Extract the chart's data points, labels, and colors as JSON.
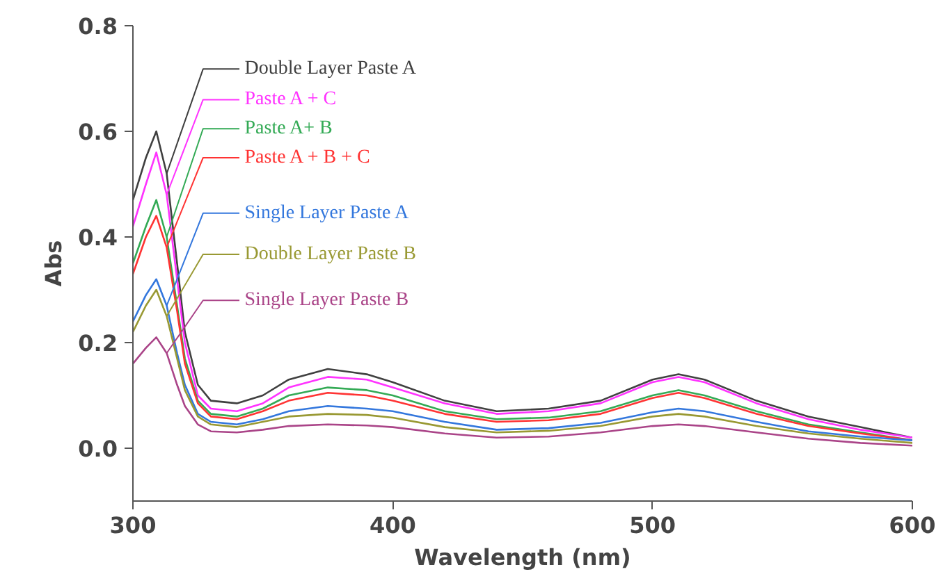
{
  "chart_data": {
    "type": "line",
    "xlabel": "Wavelength (nm)",
    "ylabel": "Abs",
    "x": [
      300,
      305,
      309,
      313,
      317,
      320,
      325,
      330,
      340,
      350,
      360,
      375,
      390,
      400,
      420,
      440,
      460,
      480,
      500,
      510,
      520,
      540,
      560,
      580,
      600
    ],
    "series": [
      {
        "name": "Double Layer Paste A",
        "color": "#404040",
        "values": [
          0.47,
          0.55,
          0.6,
          0.52,
          0.35,
          0.22,
          0.12,
          0.09,
          0.085,
          0.1,
          0.13,
          0.15,
          0.14,
          0.125,
          0.09,
          0.07,
          0.075,
          0.09,
          0.13,
          0.14,
          0.13,
          0.09,
          0.06,
          0.04,
          0.02
        ]
      },
      {
        "name": "Paste A + C",
        "color": "#ff33ff",
        "values": [
          0.42,
          0.5,
          0.56,
          0.48,
          0.32,
          0.2,
          0.1,
          0.075,
          0.07,
          0.085,
          0.115,
          0.135,
          0.13,
          0.115,
          0.085,
          0.065,
          0.07,
          0.085,
          0.125,
          0.135,
          0.125,
          0.085,
          0.055,
          0.035,
          0.02
        ]
      },
      {
        "name": "Paste A+ B",
        "color": "#33aa55",
        "values": [
          0.35,
          0.42,
          0.47,
          0.4,
          0.27,
          0.17,
          0.09,
          0.065,
          0.06,
          0.075,
          0.1,
          0.115,
          0.11,
          0.1,
          0.07,
          0.055,
          0.058,
          0.07,
          0.1,
          0.11,
          0.1,
          0.07,
          0.045,
          0.03,
          0.015
        ]
      },
      {
        "name": "Paste A + B + C",
        "color": "#ff3333",
        "values": [
          0.33,
          0.4,
          0.44,
          0.38,
          0.26,
          0.16,
          0.085,
          0.06,
          0.055,
          0.07,
          0.09,
          0.105,
          0.1,
          0.09,
          0.065,
          0.05,
          0.053,
          0.065,
          0.095,
          0.105,
          0.095,
          0.065,
          0.042,
          0.028,
          0.015
        ]
      },
      {
        "name": "Single Layer Paste A",
        "color": "#3377dd",
        "values": [
          0.24,
          0.29,
          0.32,
          0.27,
          0.18,
          0.12,
          0.065,
          0.05,
          0.045,
          0.055,
          0.07,
          0.08,
          0.075,
          0.07,
          0.05,
          0.035,
          0.038,
          0.048,
          0.068,
          0.075,
          0.07,
          0.05,
          0.032,
          0.022,
          0.015
        ]
      },
      {
        "name": "Double Layer Paste B",
        "color": "#999933",
        "values": [
          0.22,
          0.27,
          0.3,
          0.25,
          0.17,
          0.11,
          0.06,
          0.045,
          0.04,
          0.05,
          0.06,
          0.065,
          0.063,
          0.058,
          0.04,
          0.03,
          0.033,
          0.042,
          0.06,
          0.065,
          0.06,
          0.042,
          0.028,
          0.018,
          0.01
        ]
      },
      {
        "name": "Single Layer Paste B",
        "color": "#aa4488",
        "values": [
          0.16,
          0.19,
          0.21,
          0.18,
          0.12,
          0.08,
          0.045,
          0.032,
          0.03,
          0.035,
          0.042,
          0.045,
          0.043,
          0.04,
          0.028,
          0.02,
          0.022,
          0.03,
          0.042,
          0.045,
          0.042,
          0.03,
          0.018,
          0.01,
          0.005
        ]
      }
    ],
    "xlim": [
      300,
      600
    ],
    "xticks": [
      300,
      400,
      500,
      600
    ],
    "ylim": [
      -0.1,
      0.8
    ],
    "yticks": [
      {
        "value": 0,
        "label": "0.0"
      },
      0.2,
      0.4,
      0.6,
      0.8
    ],
    "grid": false,
    "marker": "none",
    "line_style": "solid"
  }
}
